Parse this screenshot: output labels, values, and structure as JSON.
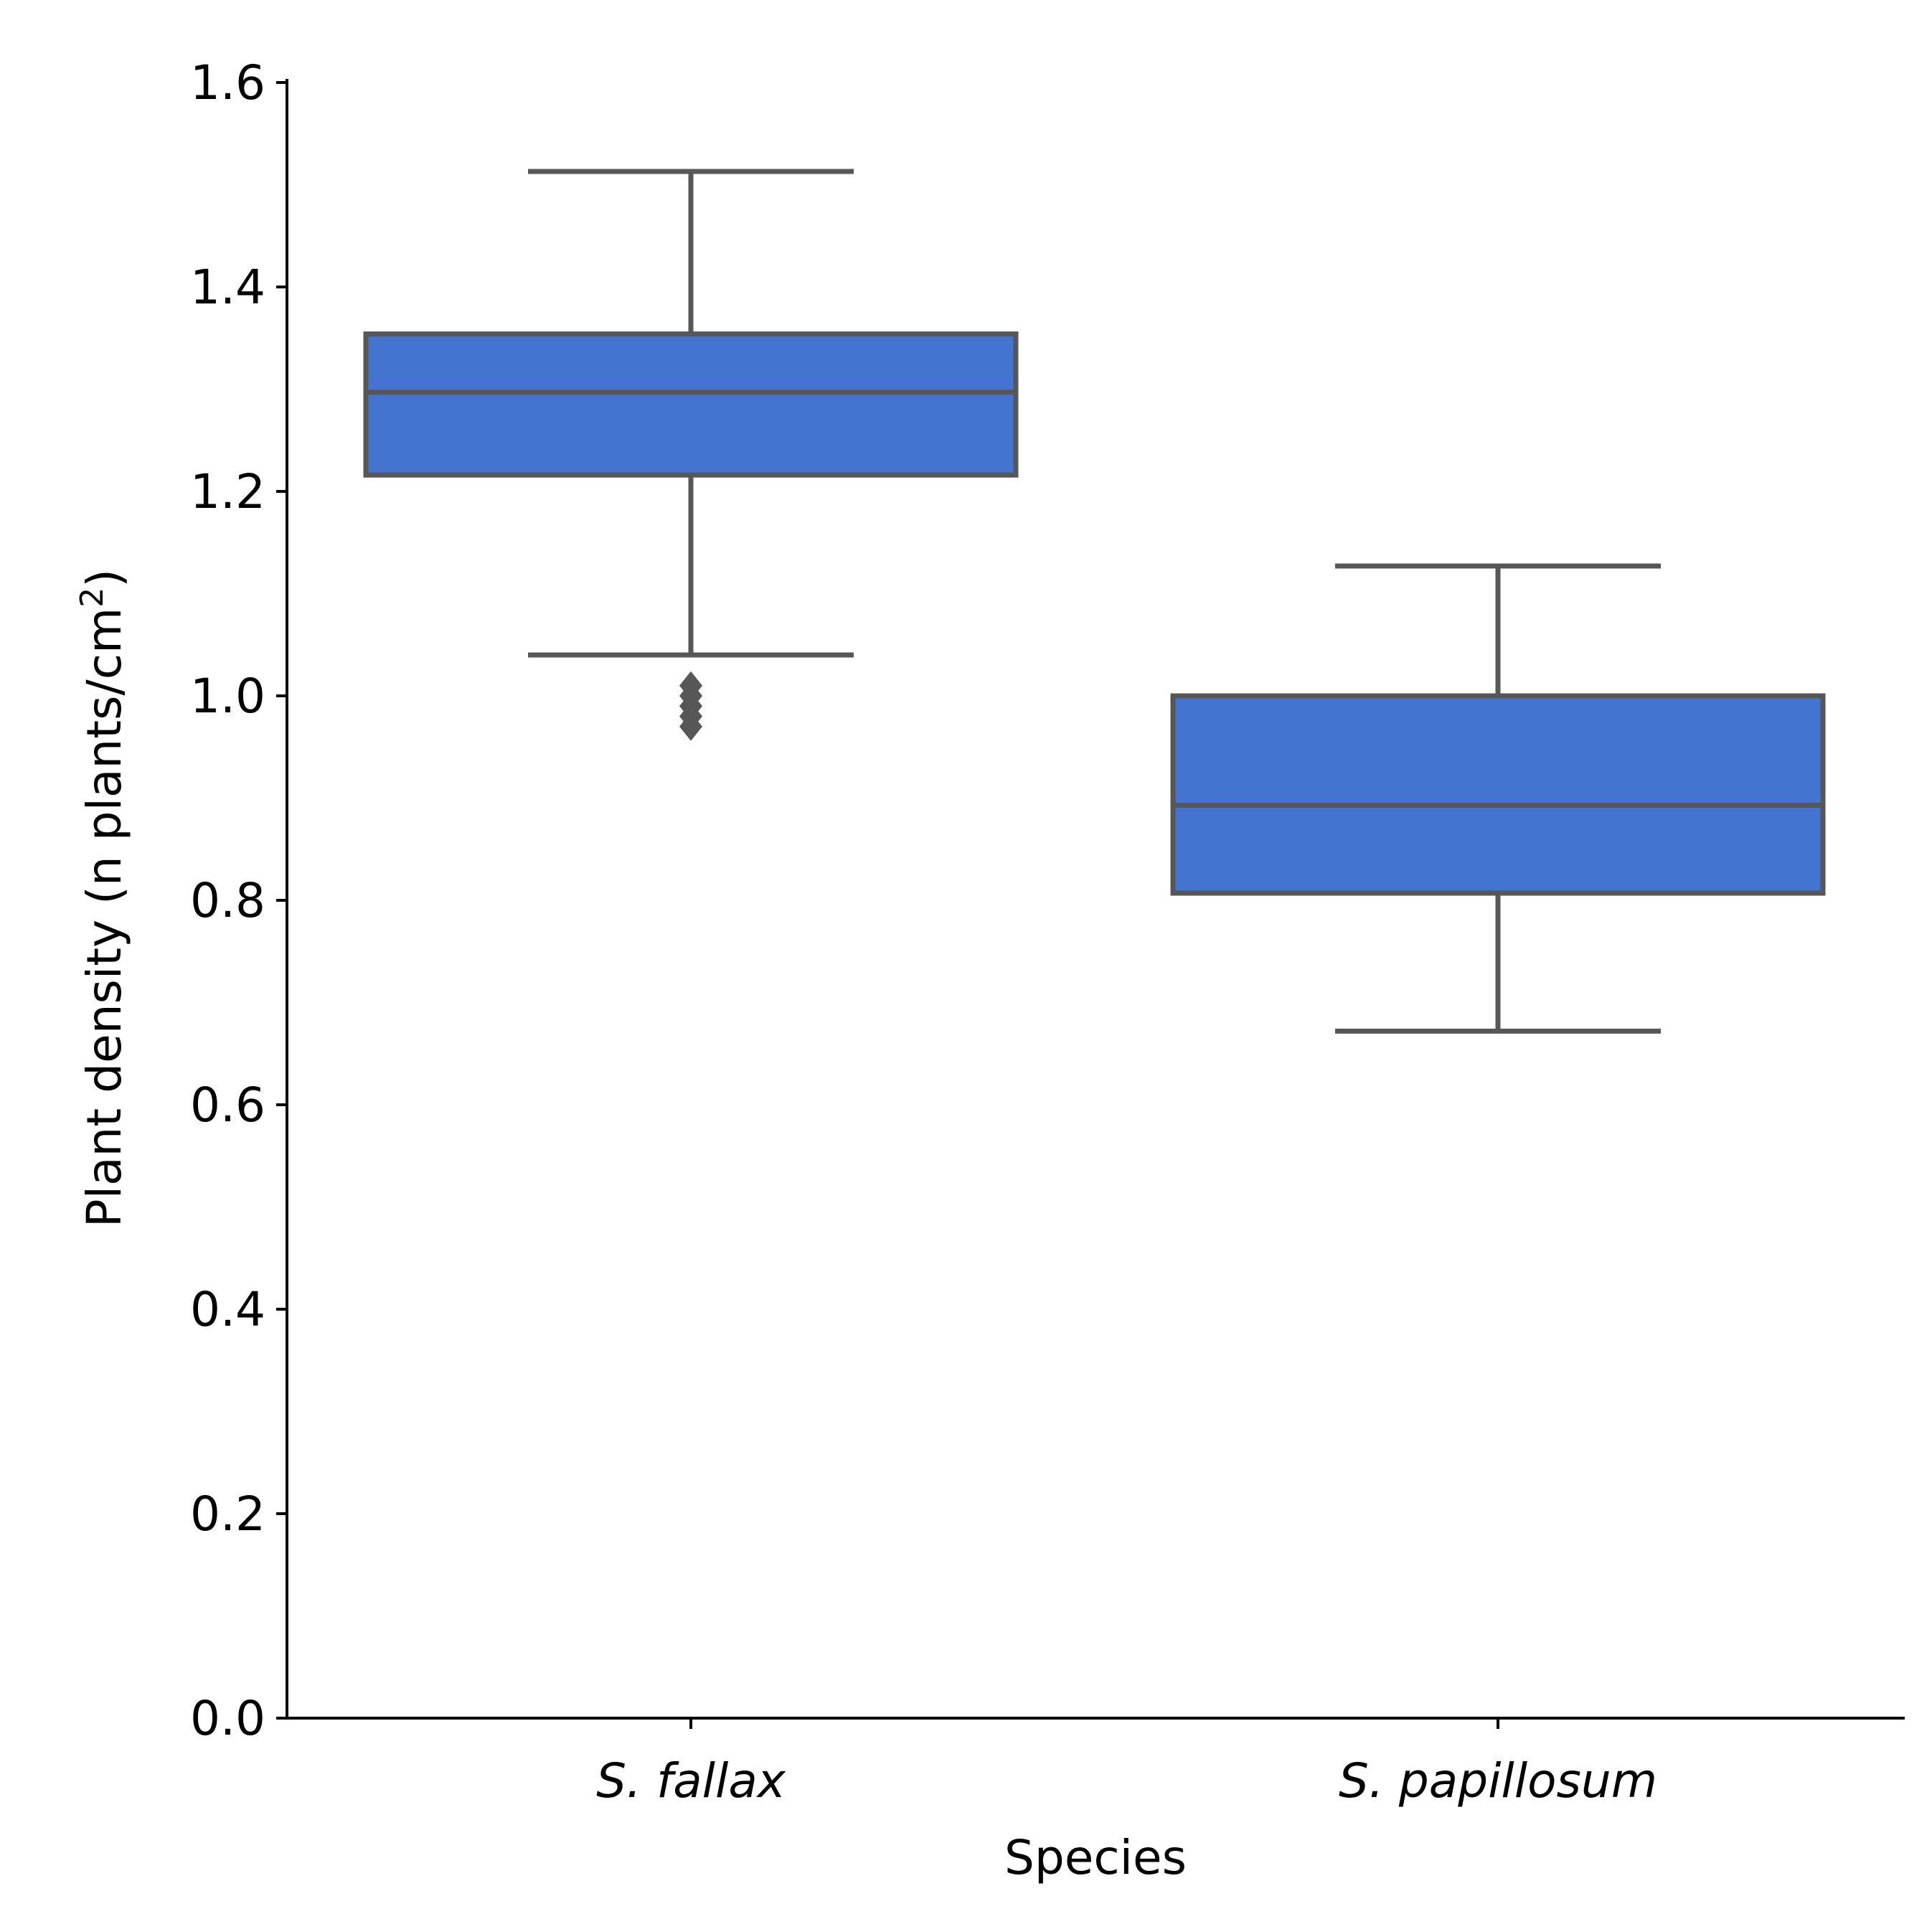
{
  "chart_data": {
    "type": "box",
    "title": "",
    "xlabel": "Species",
    "ylabel": "Plant density (n plants/cm",
    "ylabel_superscript": "2",
    "ylabel_suffix": ")",
    "ylim": [
      0.0,
      1.6
    ],
    "yticks": [
      "0.0",
      "0.2",
      "0.4",
      "0.6",
      "0.8",
      "1.0",
      "1.2",
      "1.4",
      "1.6"
    ],
    "categories": [
      "S. fallax",
      "S. papillosum"
    ],
    "boxes": [
      {
        "category": "S. fallax",
        "whisker_low": 1.04,
        "q1": 1.216,
        "median": 1.297,
        "q3": 1.354,
        "whisker_high": 1.513,
        "outliers": [
          1.01,
          1.0,
          0.99,
          0.98,
          0.97
        ]
      },
      {
        "category": "S. papillosum",
        "whisker_low": 0.672,
        "q1": 0.807,
        "median": 0.893,
        "q3": 1.0,
        "whisker_high": 1.127,
        "outliers": []
      }
    ],
    "colors": {
      "box_fill": "#4474CF",
      "box_line": "#575757",
      "axis": "#000000"
    },
    "grid": false
  }
}
